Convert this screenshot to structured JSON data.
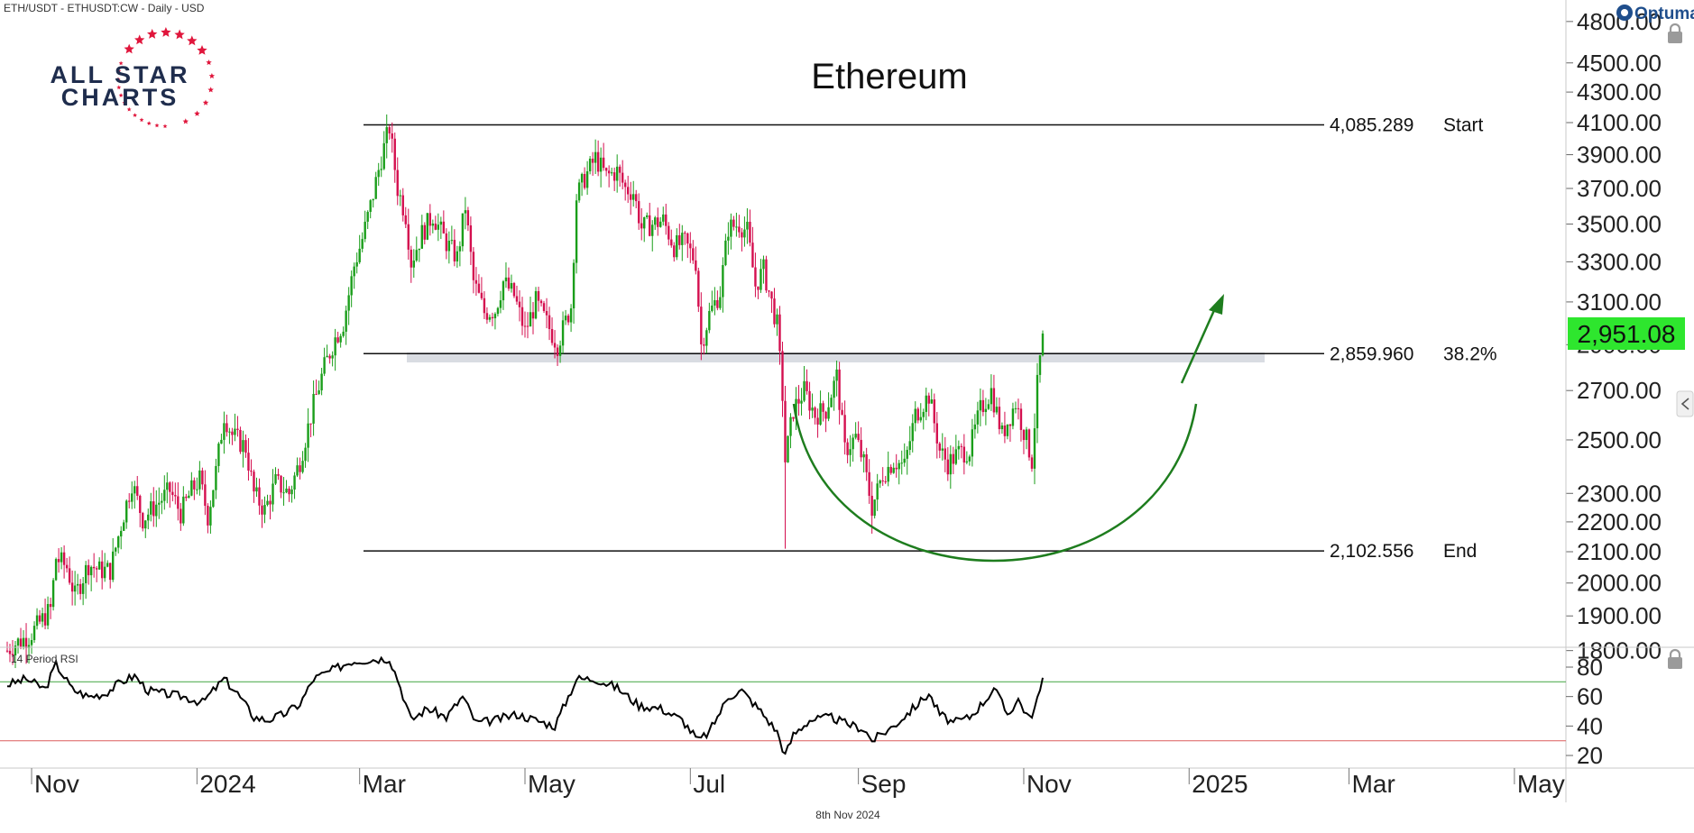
{
  "header": {
    "symbol_line": "ETH/USDT - ETHUSDT:CW - Daily - USD",
    "brand": "Optuma"
  },
  "logo": {
    "line1": "ALL STAR",
    "line2": "CHARTS"
  },
  "footer": {
    "date": "8th Nov 2024"
  },
  "colors": {
    "up_candle": "#1a9e1a",
    "down_candle": "#d40f4f",
    "arc": "#1e7d1e",
    "price_badge": "#2ee62e",
    "rsi_line": "#000000",
    "rsi_upper": "#58b058",
    "rsi_lower": "#e07070",
    "band": "#d9dce2",
    "logo_stars": "#e0163c"
  },
  "chart_data": [
    {
      "type": "candlestick",
      "title": "Ethereum",
      "price_scale": "log",
      "ylim": [
        1800,
        4800
      ],
      "y_ticks": [
        "1800.00",
        "1900.00",
        "2000.00",
        "2100.00",
        "2200.00",
        "2300.00",
        "2500.00",
        "2700.00",
        "2900.00",
        "3100.00",
        "3300.00",
        "3500.00",
        "3700.00",
        "3900.00",
        "4100.00",
        "4300.00",
        "4500.00",
        "4800.00"
      ],
      "x_ticks": [
        "Nov",
        "2024",
        "Mar",
        "May",
        "Jul",
        "Sep",
        "Nov",
        "2025",
        "Mar",
        "May"
      ],
      "x_range": [
        "2023-10-23",
        "2025-05-20"
      ],
      "last_price": "2,951.08",
      "fib_levels": [
        {
          "value": 4085.289,
          "price_label": "4,085.289",
          "name": "Start"
        },
        {
          "value": 2859.96,
          "price_label": "2,859.960",
          "name": "38.2%"
        },
        {
          "value": 2102.556,
          "price_label": "2,102.556",
          "name": "End"
        }
      ],
      "annotations": [
        "rounded-bottom arc",
        "upward arrow"
      ],
      "close_path": [
        [
          "2023-10-23",
          1800
        ],
        [
          "2023-10-26",
          1820
        ],
        [
          "2023-10-31",
          1840
        ],
        [
          "2023-11-04",
          1880
        ],
        [
          "2023-11-08",
          1920
        ],
        [
          "2023-11-10",
          2080
        ],
        [
          "2023-11-14",
          2050
        ],
        [
          "2023-11-17",
          1960
        ],
        [
          "2023-11-22",
          2060
        ],
        [
          "2023-11-26",
          2040
        ],
        [
          "2023-11-30",
          2040
        ],
        [
          "2023-12-04",
          2190
        ],
        [
          "2023-12-08",
          2340
        ],
        [
          "2023-12-12",
          2210
        ],
        [
          "2023-12-17",
          2260
        ],
        [
          "2023-12-22",
          2310
        ],
        [
          "2023-12-26",
          2230
        ],
        [
          "2023-12-30",
          2310
        ],
        [
          "2024-01-02",
          2350
        ],
        [
          "2024-01-05",
          2220
        ],
        [
          "2024-01-08",
          2380
        ],
        [
          "2024-01-11",
          2600
        ],
        [
          "2024-01-14",
          2520
        ],
        [
          "2024-01-19",
          2470
        ],
        [
          "2024-01-22",
          2300
        ],
        [
          "2024-01-26",
          2240
        ],
        [
          "2024-01-30",
          2340
        ],
        [
          "2024-02-04",
          2300
        ],
        [
          "2024-02-08",
          2420
        ],
        [
          "2024-02-13",
          2640
        ],
        [
          "2024-02-17",
          2800
        ],
        [
          "2024-02-21",
          2930
        ],
        [
          "2024-02-24",
          3000
        ],
        [
          "2024-02-28",
          3280
        ],
        [
          "2024-03-02",
          3420
        ],
        [
          "2024-03-05",
          3600
        ],
        [
          "2024-03-09",
          3880
        ],
        [
          "2024-03-12",
          4070
        ],
        [
          "2024-03-15",
          3700
        ],
        [
          "2024-03-18",
          3550
        ],
        [
          "2024-03-20",
          3300
        ],
        [
          "2024-03-24",
          3450
        ],
        [
          "2024-03-28",
          3550
        ],
        [
          "2024-04-02",
          3400
        ],
        [
          "2024-04-06",
          3320
        ],
        [
          "2024-04-09",
          3600
        ],
        [
          "2024-04-12",
          3200
        ],
        [
          "2024-04-16",
          3050
        ],
        [
          "2024-04-20",
          3060
        ],
        [
          "2024-04-23",
          3200
        ],
        [
          "2024-04-27",
          3130
        ],
        [
          "2024-05-01",
          2960
        ],
        [
          "2024-05-05",
          3100
        ],
        [
          "2024-05-09",
          3000
        ],
        [
          "2024-05-13",
          2900
        ],
        [
          "2024-05-18",
          3080
        ],
        [
          "2024-05-20",
          3650
        ],
        [
          "2024-05-23",
          3760
        ],
        [
          "2024-05-27",
          3880
        ],
        [
          "2024-05-31",
          3770
        ],
        [
          "2024-06-04",
          3800
        ],
        [
          "2024-06-07",
          3700
        ],
        [
          "2024-06-10",
          3680
        ],
        [
          "2024-06-13",
          3480
        ],
        [
          "2024-06-17",
          3500
        ],
        [
          "2024-06-21",
          3520
        ],
        [
          "2024-06-25",
          3380
        ],
        [
          "2024-06-29",
          3400
        ],
        [
          "2024-07-03",
          3300
        ],
        [
          "2024-07-05",
          2900
        ],
        [
          "2024-07-08",
          3040
        ],
        [
          "2024-07-12",
          3150
        ],
        [
          "2024-07-15",
          3480
        ],
        [
          "2024-07-19",
          3500
        ],
        [
          "2024-07-22",
          3460
        ],
        [
          "2024-07-25",
          3180
        ],
        [
          "2024-07-28",
          3260
        ],
        [
          "2024-08-02",
          2990
        ],
        [
          "2024-08-04",
          2680
        ],
        [
          "2024-08-05",
          2420
        ],
        [
          "2024-08-08",
          2620
        ],
        [
          "2024-08-12",
          2700
        ],
        [
          "2024-08-16",
          2600
        ],
        [
          "2024-08-20",
          2620
        ],
        [
          "2024-08-24",
          2760
        ],
        [
          "2024-08-27",
          2460
        ],
        [
          "2024-08-31",
          2510
        ],
        [
          "2024-09-03",
          2410
        ],
        [
          "2024-09-06",
          2250
        ],
        [
          "2024-09-10",
          2370
        ],
        [
          "2024-09-14",
          2420
        ],
        [
          "2024-09-18",
          2400
        ],
        [
          "2024-09-22",
          2600
        ],
        [
          "2024-09-27",
          2680
        ],
        [
          "2024-10-01",
          2460
        ],
        [
          "2024-10-04",
          2410
        ],
        [
          "2024-10-08",
          2450
        ],
        [
          "2024-10-12",
          2460
        ],
        [
          "2024-10-16",
          2620
        ],
        [
          "2024-10-20",
          2700
        ],
        [
          "2024-10-24",
          2520
        ],
        [
          "2024-10-29",
          2650
        ],
        [
          "2024-11-02",
          2500
        ],
        [
          "2024-11-04",
          2420
        ],
        [
          "2024-11-06",
          2720
        ],
        [
          "2024-11-08",
          2951
        ]
      ]
    },
    {
      "type": "line",
      "title": "14 Period RSI",
      "ylim": [
        15,
        95
      ],
      "y_ticks": [
        "20",
        "40",
        "60",
        "80"
      ],
      "reference_lines": [
        70,
        30
      ],
      "series": [
        {
          "values": [
            [
              "2023-10-23",
              68
            ],
            [
              "2023-10-30",
              72
            ],
            [
              "2023-11-06",
              65
            ],
            [
              "2023-11-10",
              82
            ],
            [
              "2023-11-16",
              65
            ],
            [
              "2023-11-22",
              60
            ],
            [
              "2023-11-28",
              62
            ],
            [
              "2023-12-04",
              70
            ],
            [
              "2023-12-09",
              74
            ],
            [
              "2023-12-14",
              64
            ],
            [
              "2023-12-20",
              62
            ],
            [
              "2023-12-27",
              60
            ],
            [
              "2024-01-03",
              56
            ],
            [
              "2024-01-11",
              72
            ],
            [
              "2024-01-16",
              62
            ],
            [
              "2024-01-22",
              46
            ],
            [
              "2024-01-27",
              44
            ],
            [
              "2024-02-02",
              48
            ],
            [
              "2024-02-08",
              55
            ],
            [
              "2024-02-13",
              72
            ],
            [
              "2024-02-20",
              78
            ],
            [
              "2024-02-27",
              84
            ],
            [
              "2024-03-04",
              85
            ],
            [
              "2024-03-12",
              86
            ],
            [
              "2024-03-15",
              72
            ],
            [
              "2024-03-20",
              44
            ],
            [
              "2024-03-26",
              52
            ],
            [
              "2024-04-02",
              46
            ],
            [
              "2024-04-08",
              60
            ],
            [
              "2024-04-13",
              42
            ],
            [
              "2024-04-20",
              44
            ],
            [
              "2024-04-28",
              48
            ],
            [
              "2024-05-05",
              44
            ],
            [
              "2024-05-12",
              40
            ],
            [
              "2024-05-20",
              72
            ],
            [
              "2024-05-27",
              72
            ],
            [
              "2024-06-04",
              66
            ],
            [
              "2024-06-12",
              54
            ],
            [
              "2024-06-20",
              52
            ],
            [
              "2024-06-28",
              44
            ],
            [
              "2024-07-04",
              30
            ],
            [
              "2024-07-08",
              36
            ],
            [
              "2024-07-15",
              60
            ],
            [
              "2024-07-20",
              64
            ],
            [
              "2024-07-27",
              50
            ],
            [
              "2024-08-02",
              36
            ],
            [
              "2024-08-05",
              20
            ],
            [
              "2024-08-08",
              34
            ],
            [
              "2024-08-14",
              44
            ],
            [
              "2024-08-22",
              46
            ],
            [
              "2024-08-27",
              42
            ],
            [
              "2024-09-03",
              38
            ],
            [
              "2024-09-06",
              30
            ],
            [
              "2024-09-14",
              40
            ],
            [
              "2024-09-20",
              50
            ],
            [
              "2024-09-27",
              62
            ],
            [
              "2024-10-01",
              48
            ],
            [
              "2024-10-06",
              42
            ],
            [
              "2024-10-12",
              46
            ],
            [
              "2024-10-18",
              58
            ],
            [
              "2024-10-21",
              66
            ],
            [
              "2024-10-26",
              48
            ],
            [
              "2024-10-30",
              58
            ],
            [
              "2024-11-03",
              45
            ],
            [
              "2024-11-05",
              52
            ],
            [
              "2024-11-08",
              70
            ]
          ]
        }
      ]
    }
  ]
}
